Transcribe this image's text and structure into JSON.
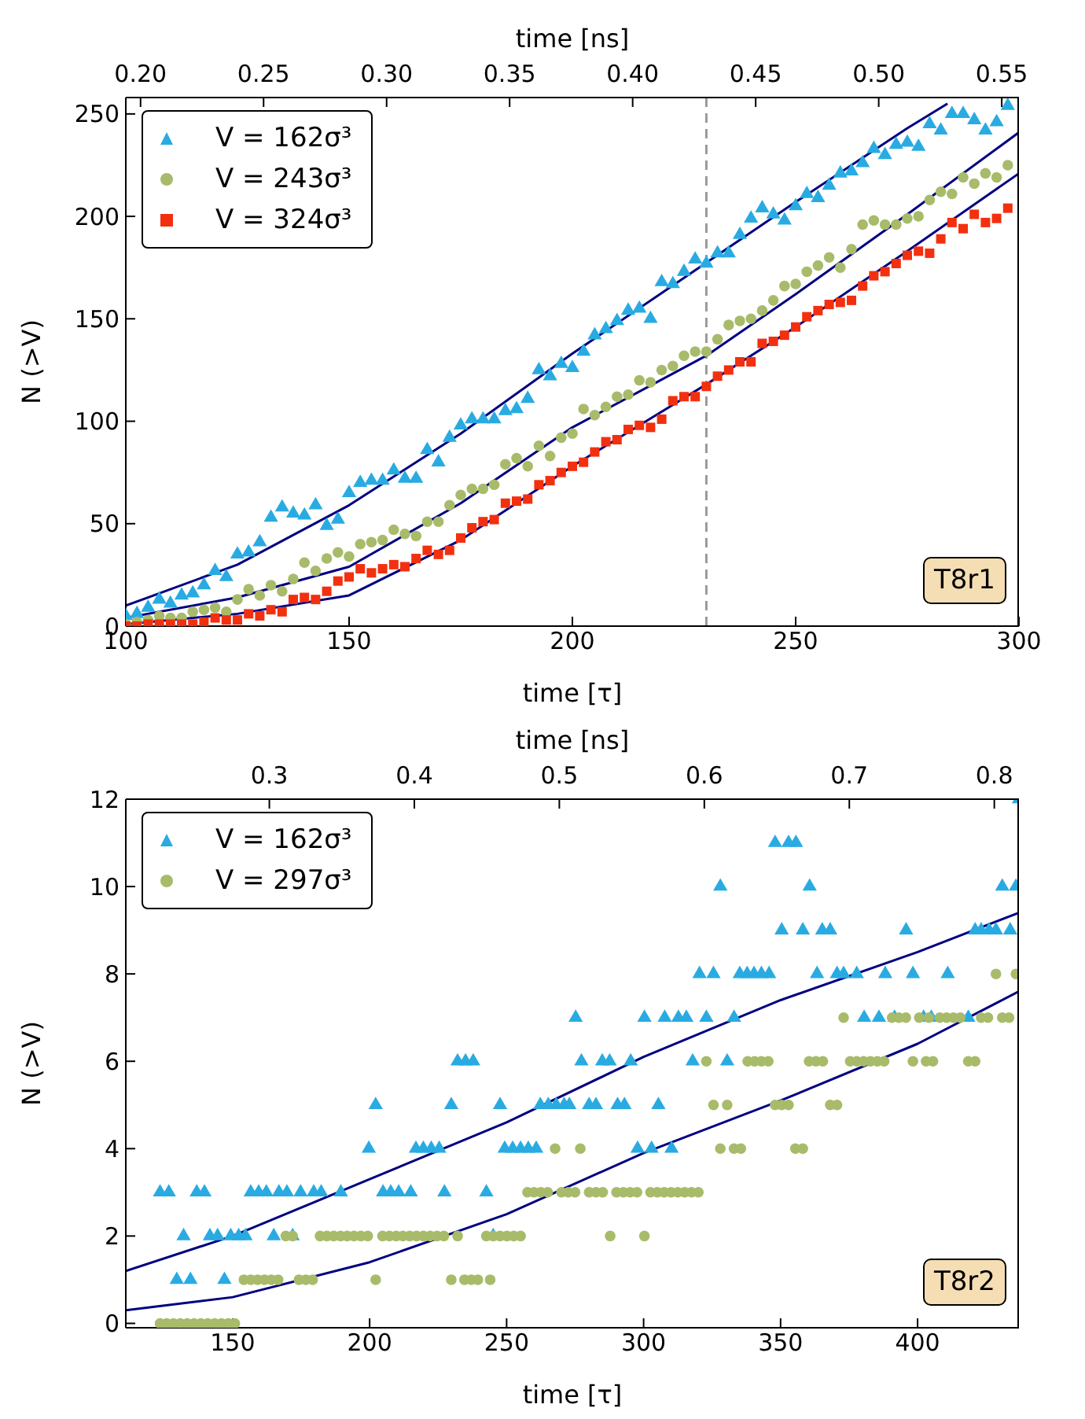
{
  "chart_data": [
    {
      "type": "scatter",
      "xlabel": "time [τ]",
      "x2label": "time [ns]",
      "ylabel": "N (>V)",
      "legend": "top left",
      "grid": false,
      "annotations": [
        "T8r1"
      ],
      "xlim": [
        100,
        300
      ],
      "xticks": [
        100,
        150,
        200,
        250,
        300
      ],
      "x2lim": [
        0.194,
        0.557
      ],
      "x2ticks": [
        {
          "value": 0.2,
          "label": "0.20"
        },
        0.25,
        {
          "value": 0.3,
          "label": "0.30"
        },
        0.35,
        {
          "value": 0.4,
          "label": "0.40"
        },
        0.45,
        {
          "value": 0.5,
          "label": "0.50"
        },
        0.55
      ],
      "ylim": [
        0,
        258
      ],
      "yticks": [
        0,
        50,
        100,
        150,
        200,
        250
      ],
      "ref_lines": [
        {
          "axis": "x",
          "value": 230,
          "color": "#999999",
          "line_style": "dashed"
        }
      ],
      "x": [
        100,
        102.5,
        105,
        107.5,
        110,
        112.5,
        115,
        117.5,
        120,
        122.5,
        125,
        127.5,
        130,
        132.5,
        135,
        137.5,
        140,
        142.5,
        145,
        147.5,
        150,
        152.5,
        155,
        157.5,
        160,
        162.5,
        165,
        167.5,
        170,
        172.5,
        175,
        177.5,
        180,
        182.5,
        185,
        187.5,
        190,
        192.5,
        195,
        197.5,
        200,
        202.5,
        205,
        207.5,
        210,
        212.5,
        215,
        217.5,
        220,
        222.5,
        225,
        227.5,
        230,
        232.5,
        235,
        237.5,
        240,
        242.5,
        245,
        247.5,
        250,
        252.5,
        255,
        257.5,
        260,
        262.5,
        265,
        267.5,
        270,
        272.5,
        275,
        277.5,
        280,
        282.5,
        285,
        287.5,
        290,
        292.5,
        295,
        297.5
      ],
      "series": [
        {
          "name": "V = 162σ³",
          "marker": "triangle",
          "color": "#29abe2",
          "values": [
            5,
            6,
            9,
            13,
            11,
            15,
            16,
            20,
            27,
            24,
            35,
            36,
            41,
            53,
            58,
            55,
            54,
            59,
            49,
            52,
            65,
            70,
            71,
            71,
            76,
            72,
            72,
            86,
            80,
            92,
            98,
            101,
            101,
            101,
            105,
            106,
            111,
            125,
            122,
            128,
            126,
            134,
            142,
            145,
            149,
            154,
            155,
            150,
            168,
            167,
            173,
            179,
            177,
            182,
            182,
            191,
            199,
            204,
            201,
            198,
            205,
            211,
            209,
            215,
            221,
            222,
            226,
            233,
            230,
            235,
            236,
            234,
            245,
            242,
            250,
            250,
            247,
            242,
            246,
            254
          ]
        },
        {
          "name": "V = 243σ³",
          "marker": "circle",
          "color": "#a8bb6a",
          "values": [
            1,
            2,
            3,
            5,
            4,
            4,
            7,
            8,
            9,
            7,
            13,
            18,
            15,
            20,
            17,
            23,
            31,
            27,
            33,
            36,
            34,
            40,
            41,
            42,
            47,
            45,
            44,
            51,
            51,
            59,
            64,
            67,
            67,
            69,
            79,
            82,
            78,
            88,
            83,
            92,
            94,
            106,
            103,
            107,
            112,
            113,
            120,
            119,
            125,
            127,
            132,
            134,
            134,
            140,
            147,
            149,
            150,
            154,
            159,
            166,
            167,
            173,
            176,
            180,
            175,
            184,
            196,
            198,
            196,
            196,
            199,
            200,
            208,
            212,
            211,
            219,
            216,
            221,
            219,
            225
          ]
        },
        {
          "name": "V = 324σ³",
          "marker": "square",
          "color": "#f2300f",
          "values": [
            0,
            0,
            1,
            1,
            1,
            1,
            1,
            2,
            4,
            3,
            3,
            6,
            5,
            8,
            7,
            13,
            14,
            13,
            17,
            22,
            24,
            28,
            26,
            28,
            30,
            29,
            33,
            37,
            35,
            37,
            43,
            48,
            51,
            52,
            60,
            61,
            62,
            69,
            71,
            75,
            78,
            80,
            85,
            90,
            91,
            96,
            98,
            97,
            101,
            110,
            112,
            112,
            117,
            122,
            125,
            129,
            129,
            138,
            139,
            142,
            146,
            151,
            154,
            157,
            158,
            159,
            166,
            171,
            173,
            177,
            181,
            183,
            182,
            189,
            197,
            194,
            201,
            197,
            199,
            204
          ]
        },
        {
          "type": "line",
          "marker": "none",
          "line_style": "solid",
          "color": "#000080",
          "x": [
            100,
            125,
            150,
            175,
            200,
            225,
            250,
            275,
            284
          ],
          "values": [
            10,
            30,
            59,
            94,
            133,
            170,
            207,
            243,
            255
          ]
        },
        {
          "type": "line",
          "marker": "none",
          "line_style": "solid",
          "color": "#000080",
          "x": [
            100,
            125,
            150,
            175,
            200,
            230,
            250,
            275,
            300
          ],
          "values": [
            4,
            14,
            29,
            60,
            97,
            132,
            162,
            201,
            241
          ]
        },
        {
          "type": "line",
          "marker": "none",
          "line_style": "solid",
          "color": "#000080",
          "x": [
            100,
            125,
            150,
            175,
            200,
            230,
            250,
            275,
            300
          ],
          "values": [
            1,
            6,
            15,
            42,
            78,
            118,
            146,
            183,
            221
          ]
        }
      ]
    },
    {
      "type": "scatter",
      "xlabel": "time [τ]",
      "x2label": "time [ns]",
      "ylabel": "N (>V)",
      "legend": "top left",
      "grid": false,
      "annotations": [
        "T8r2"
      ],
      "xlim": [
        111,
        437
      ],
      "xticks": [
        150,
        200,
        250,
        300,
        350,
        400
      ],
      "x2lim": [
        0.201,
        0.817
      ],
      "x2ticks": [
        0.3,
        0.4,
        0.5,
        0.6,
        0.7,
        0.8
      ],
      "ylim": [
        -0.1,
        12
      ],
      "yticks": [
        0,
        2,
        4,
        6,
        8,
        10,
        12
      ],
      "series": [
        {
          "name": "V = 162σ³",
          "marker": "triangle",
          "color": "#29abe2",
          "x": [
            123.5,
            126.7,
            129.6,
            132.1,
            134.6,
            136.9,
            139.7,
            141.7,
            144.5,
            147,
            149.3,
            152.2,
            154.7,
            156.6,
            159.5,
            162.3,
            165,
            166.9,
            169.8,
            171.9,
            174.8,
            179.6,
            182.3,
            189.5,
            199.7,
            202.2,
            204.9,
            207.7,
            210.6,
            215,
            216.9,
            219.6,
            222.5,
            225.4,
            227.3,
            229.8,
            232.1,
            235,
            237.8,
            242.6,
            245.1,
            247.6,
            249.3,
            252.2,
            255.1,
            257.9,
            260.8,
            262.3,
            265.2,
            268.1,
            271,
            272.9,
            275.2,
            277.3,
            280.1,
            282.6,
            284.9,
            287.6,
            290.5,
            293,
            295.3,
            297.8,
            300.3,
            302.9,
            305.4,
            307.7,
            310.2,
            312.7,
            315.6,
            317.9,
            320.4,
            322.9,
            325.5,
            328,
            330.5,
            333,
            335.1,
            337.8,
            340.3,
            343,
            345.8,
            348,
            350.4,
            352.9,
            355.6,
            358.1,
            360.6,
            363.3,
            365.2,
            368.1,
            370.6,
            373,
            377.8,
            380.5,
            385.9,
            388.2,
            391.6,
            395.8,
            398.3,
            402.2,
            405,
            411,
            418.5,
            421,
            423.2,
            426.1,
            428.6,
            430.9,
            433.8,
            435.9,
            437
          ],
          "values": [
            3,
            3,
            1,
            2,
            1,
            3,
            3,
            2,
            2,
            1,
            2,
            2,
            2,
            3,
            3,
            3,
            2,
            3,
            3,
            2,
            3,
            3,
            3,
            3,
            4,
            5,
            3,
            3,
            3,
            3,
            4,
            4,
            4,
            4,
            3,
            5,
            6,
            6,
            6,
            3,
            2,
            5,
            4,
            4,
            4,
            4,
            4,
            5,
            5,
            5,
            5,
            5,
            7,
            6,
            5,
            5,
            6,
            6,
            5,
            5,
            6,
            4,
            7,
            4,
            5,
            7,
            4,
            7,
            7,
            6,
            8,
            7,
            8,
            10,
            6,
            7,
            8,
            8,
            8,
            8,
            8,
            11,
            9,
            11,
            11,
            9,
            10,
            8,
            9,
            9,
            8,
            8,
            8,
            7,
            7,
            8,
            7,
            9,
            8,
            7,
            7,
            8,
            7,
            9,
            9,
            9,
            9,
            10,
            9,
            10,
            12
          ]
        },
        {
          "name": "V = 297σ³",
          "marker": "circle",
          "color": "#a8bb6a",
          "x": [
            123.5,
            125.9,
            128.4,
            130.9,
            133.4,
            135.9,
            138.4,
            140.9,
            143.4,
            145.9,
            148.4,
            150.8,
            154.1,
            156.6,
            159.1,
            161.6,
            164.1,
            166.6,
            169.4,
            171.9,
            174.2,
            176.7,
            179.2,
            181.9,
            184.4,
            186.9,
            189.4,
            191.8,
            194.3,
            196.8,
            199.3,
            202.2,
            204.7,
            207.2,
            209.7,
            212.1,
            214.6,
            217.1,
            219.6,
            222.1,
            224.6,
            227.1,
            229.8,
            232.1,
            234.6,
            237.1,
            239.5,
            242.6,
            244,
            245.1,
            247.6,
            250.1,
            252.6,
            255.1,
            257.6,
            260,
            262.5,
            265,
            267.7,
            270,
            272.5,
            275,
            276.9,
            280.1,
            282.6,
            285.1,
            287.8,
            290.1,
            292.6,
            295.1,
            297.6,
            300.3,
            302.5,
            305,
            307.5,
            310,
            312.5,
            315,
            317.5,
            320,
            322.9,
            325.5,
            328,
            330.5,
            333,
            335.5,
            338,
            340.5,
            343,
            345.5,
            348,
            350.4,
            352.9,
            355.4,
            358.1,
            360.4,
            362.9,
            365.4,
            368.1,
            370.6,
            373,
            375.4,
            377.8,
            380.3,
            382.8,
            385.3,
            387.8,
            390.7,
            393.2,
            395.7,
            398.3,
            400.6,
            403.1,
            404.1,
            405.6,
            408.1,
            410.6,
            413.1,
            415.6,
            418.5,
            421,
            423.2,
            425.7,
            428.6,
            430.9,
            433.4,
            435.9
          ],
          "values": [
            0,
            0,
            0,
            0,
            0,
            0,
            0,
            0,
            0,
            0,
            0,
            0,
            1,
            1,
            1,
            1,
            1,
            1,
            2,
            2,
            1,
            1,
            1,
            2,
            2,
            2,
            2,
            2,
            2,
            2,
            2,
            1,
            2,
            2,
            2,
            2,
            2,
            2,
            2,
            2,
            2,
            2,
            1,
            2,
            1,
            1,
            1,
            2,
            1,
            2,
            2,
            2,
            2,
            2,
            3,
            3,
            3,
            3,
            4,
            3,
            3,
            3,
            4,
            3,
            3,
            3,
            2,
            3,
            3,
            3,
            3,
            2,
            3,
            3,
            3,
            3,
            3,
            3,
            3,
            3,
            6,
            5,
            4,
            5,
            4,
            4,
            6,
            6,
            6,
            6,
            5,
            5,
            5,
            4,
            4,
            6,
            6,
            6,
            5,
            5,
            7,
            6,
            6,
            6,
            6,
            6,
            6,
            7,
            7,
            7,
            6,
            7,
            6,
            7,
            6,
            7,
            7,
            7,
            7,
            6,
            6,
            7,
            7,
            8,
            7,
            7,
            8
          ]
        },
        {
          "type": "line",
          "marker": "none",
          "line_style": "solid",
          "color": "#000080",
          "x": [
            111,
            150,
            200,
            250,
            300,
            350,
            400,
            437
          ],
          "values": [
            1.2,
            2,
            3.3,
            4.6,
            6.1,
            7.4,
            8.5,
            9.4
          ]
        },
        {
          "type": "line",
          "marker": "none",
          "line_style": "solid",
          "color": "#000080",
          "x": [
            111,
            150,
            200,
            250,
            300,
            350,
            400,
            437
          ],
          "values": [
            0.3,
            0.6,
            1.4,
            2.5,
            3.9,
            5.1,
            6.4,
            7.6
          ]
        }
      ]
    }
  ]
}
